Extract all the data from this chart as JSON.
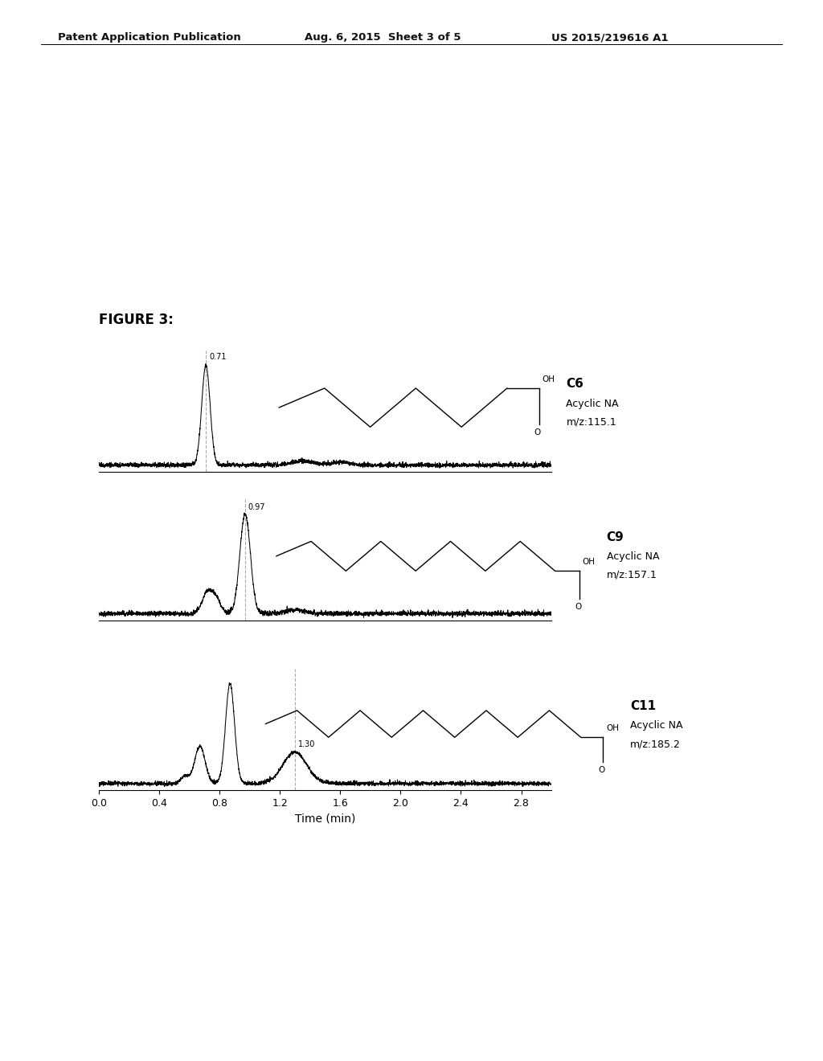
{
  "header_left": "Patent Application Publication",
  "header_mid": "Aug. 6, 2015  Sheet 3 of 5",
  "header_right": "US 2015/219616 A1",
  "figure_label": "FIGURE 3:",
  "xlabel": "Time (min)",
  "xmin": 0.0,
  "xmax": 3.0,
  "xticks": [
    0.0,
    0.4,
    0.8,
    1.2,
    1.6,
    2.0,
    2.4,
    2.8
  ],
  "xtick_labels": [
    "0.0",
    "0.4",
    "0.8",
    "1.2",
    "1.6",
    "2.0",
    "2.4",
    "2.8"
  ],
  "panels": [
    {
      "panel_idx": 0,
      "peak_time": 0.71,
      "peak_label": "0.71",
      "label": "C6",
      "sublabel": "Acyclic NA",
      "mz": "m/z:115.1",
      "dashed_line": true,
      "dashed_at": 0.71,
      "second_peak_time": null,
      "second_peak_label": null,
      "n_chain": 5
    },
    {
      "panel_idx": 1,
      "peak_time": 0.97,
      "peak_label": "0.97",
      "label": "C9",
      "sublabel": "Acyclic NA",
      "mz": "m/z:157.1",
      "dashed_line": true,
      "dashed_at": 0.97,
      "second_peak_time": null,
      "second_peak_label": null,
      "n_chain": 8
    },
    {
      "panel_idx": 2,
      "peak_time": 0.87,
      "peak_label": null,
      "label": "C11",
      "sublabel": "Acyclic NA",
      "mz": "m/z:185.2",
      "dashed_line": true,
      "dashed_at": 1.3,
      "second_peak_time": 1.3,
      "second_peak_label": "1.30",
      "n_chain": 10
    }
  ],
  "bg_color": "#ffffff",
  "line_color": "#000000",
  "text_color": "#000000",
  "dashed_color": "#aaaaaa"
}
